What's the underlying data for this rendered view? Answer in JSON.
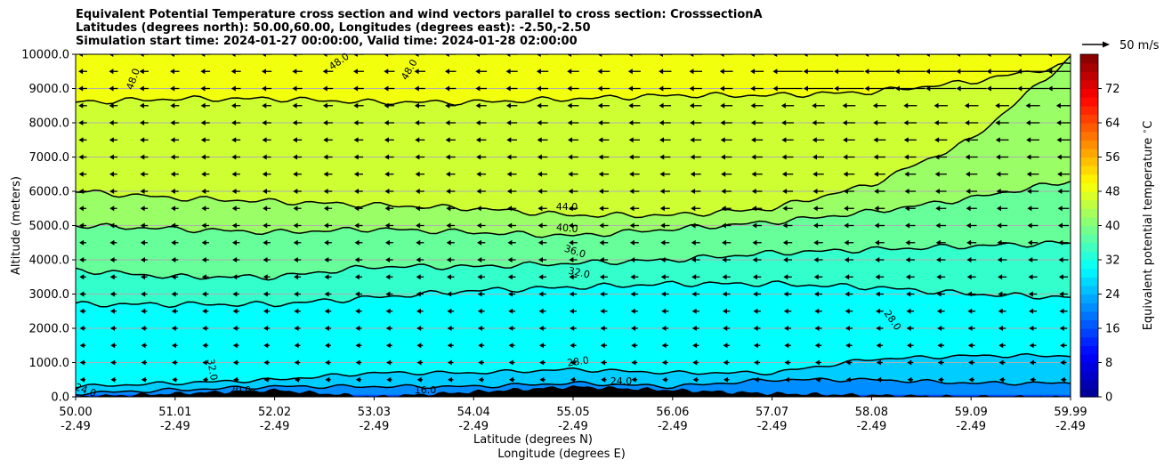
{
  "chart_data": {
    "type": "contour",
    "title": [
      "Equivalent Potential Temperature cross section and wind vectors parallel to cross section: CrosssectionA",
      "Latitudes (degrees north): 50.00,60.00, Longitudes (degrees east): -2.50,-2.50",
      "Simulation start time: 2024-01-27 00:00:00, Valid time: 2024-01-28 02:00:00"
    ],
    "ylabel": "Altitude (meters)",
    "xlabel_lines": [
      "Latitude (degrees N)",
      "Longitude (degrees E)"
    ],
    "xticks": [
      {
        "lat": "50.00",
        "lon": "-2.49"
      },
      {
        "lat": "51.01",
        "lon": "-2.49"
      },
      {
        "lat": "52.02",
        "lon": "-2.49"
      },
      {
        "lat": "53.03",
        "lon": "-2.49"
      },
      {
        "lat": "54.04",
        "lon": "-2.49"
      },
      {
        "lat": "55.05",
        "lon": "-2.49"
      },
      {
        "lat": "56.06",
        "lon": "-2.49"
      },
      {
        "lat": "57.07",
        "lon": "-2.49"
      },
      {
        "lat": "58.08",
        "lon": "-2.49"
      },
      {
        "lat": "59.09",
        "lon": "-2.49"
      },
      {
        "lat": "59.99",
        "lon": "-2.49"
      }
    ],
    "yticks": [
      "0.0",
      "1000.0",
      "2000.0",
      "3000.0",
      "4000.0",
      "5000.0",
      "6000.0",
      "7000.0",
      "8000.0",
      "9000.0",
      "10000.0"
    ],
    "ylim": [
      0,
      10000
    ],
    "grid": "horizontal",
    "colorbar": {
      "label": "Equivalent potential temperature $^\\circ$C",
      "ticks": [
        "0",
        "8",
        "16",
        "24",
        "32",
        "40",
        "48",
        "56",
        "64",
        "72"
      ],
      "range": [
        0,
        80
      ],
      "colors": [
        "#00008f",
        "#0000c8",
        "#0000ff",
        "#0040ff",
        "#0080ff",
        "#00c0ff",
        "#00ffff",
        "#40ffc0",
        "#80ff80",
        "#c0ff40",
        "#ffff00",
        "#ffc000",
        "#ff8000",
        "#ff4000",
        "#ff0000",
        "#c00000",
        "#800000"
      ]
    },
    "quiver_key": "50 m/s",
    "contour_labels": [
      "48.0",
      "48.0",
      "48.0",
      "44.0",
      "40.0",
      "36.0",
      "32.0",
      "28.0",
      "28.0",
      "24.0",
      "24.0",
      "20.0",
      "16.0",
      "32.0"
    ],
    "bands": [
      {
        "level": 48,
        "heights": [
          8600,
          8700,
          8700,
          8600,
          8600,
          8700,
          8800,
          8800,
          8900,
          9200,
          9700
        ]
      },
      {
        "level": 44,
        "heights": [
          6000,
          5800,
          5700,
          5600,
          5500,
          5300,
          5300,
          5500,
          6200,
          7500,
          9900
        ]
      },
      {
        "level": 40,
        "heights": [
          5000,
          4900,
          4800,
          4900,
          4800,
          4700,
          4900,
          5100,
          5400,
          5800,
          6300
        ]
      },
      {
        "level": 36,
        "heights": [
          3700,
          3500,
          3500,
          3800,
          3800,
          3900,
          4000,
          4200,
          4300,
          4400,
          4500
        ]
      },
      {
        "level": 32,
        "heights": [
          2700,
          2700,
          2700,
          2900,
          3100,
          3200,
          3300,
          3300,
          3200,
          3000,
          2900
        ]
      },
      {
        "level": 28,
        "heights": [
          300,
          400,
          500,
          700,
          700,
          800,
          700,
          700,
          1100,
          1200,
          1200
        ]
      },
      {
        "level": 24,
        "heights": [
          100,
          200,
          300,
          300,
          300,
          400,
          300,
          500,
          500,
          400,
          400
        ]
      }
    ],
    "terrain_heights": [
      0,
      100,
      200,
      0,
      150,
      300,
      200,
      100,
      50,
      0,
      0
    ]
  }
}
